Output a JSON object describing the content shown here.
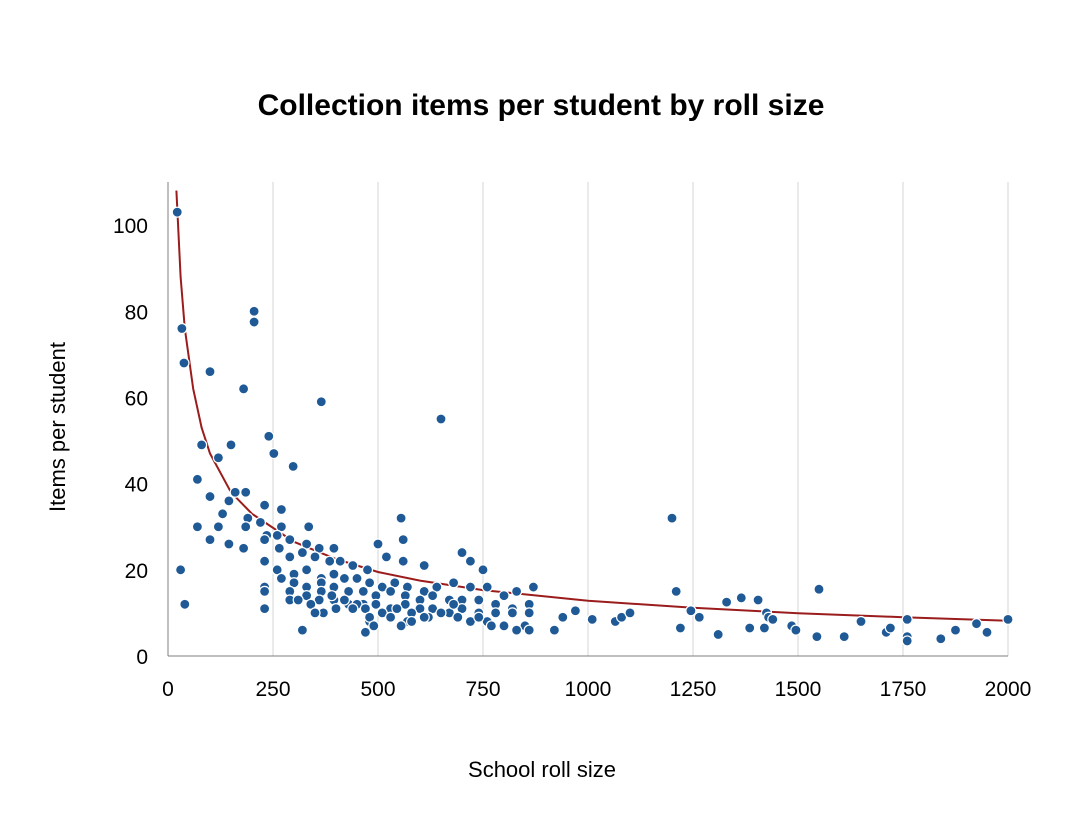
{
  "chart_data": {
    "type": "scatter",
    "title": "Collection items per student by roll size",
    "xlabel": "School roll size",
    "ylabel": "Items per student",
    "xlim": [
      0,
      2000
    ],
    "ylim": [
      0,
      110
    ],
    "xticks": [
      0,
      250,
      500,
      750,
      1000,
      1250,
      1500,
      1750,
      2000
    ],
    "yticks": [
      0,
      20,
      40,
      60,
      80,
      100
    ],
    "grid": "vertical",
    "legend": "none",
    "point_color": "#1f5a96",
    "trend_color": "#9b1c1c",
    "trendline": {
      "type": "power",
      "points": [
        [
          20,
          108
        ],
        [
          30,
          88
        ],
        [
          40,
          76
        ],
        [
          60,
          62
        ],
        [
          80,
          53
        ],
        [
          100,
          47
        ],
        [
          150,
          38
        ],
        [
          200,
          33
        ],
        [
          300,
          26.5
        ],
        [
          400,
          22.5
        ],
        [
          500,
          19.5
        ],
        [
          600,
          17.5
        ],
        [
          750,
          15.3
        ],
        [
          1000,
          12.8
        ],
        [
          1250,
          11.2
        ],
        [
          1500,
          9.9
        ],
        [
          1750,
          9.0
        ],
        [
          2000,
          8.2
        ]
      ]
    },
    "points": [
      [
        22,
        103
      ],
      [
        33,
        76
      ],
      [
        38,
        68
      ],
      [
        30,
        20
      ],
      [
        40,
        12
      ],
      [
        100,
        66
      ],
      [
        205,
        80
      ],
      [
        205,
        77.5
      ],
      [
        180,
        62
      ],
      [
        240,
        51
      ],
      [
        252,
        47
      ],
      [
        150,
        49
      ],
      [
        80,
        49
      ],
      [
        120,
        46
      ],
      [
        298,
        44
      ],
      [
        365,
        59
      ],
      [
        650,
        55
      ],
      [
        1200,
        32
      ],
      [
        1550,
        15.5
      ],
      [
        70,
        41
      ],
      [
        160,
        38
      ],
      [
        185,
        38
      ],
      [
        100,
        37
      ],
      [
        145,
        36
      ],
      [
        230,
        35
      ],
      [
        270,
        34
      ],
      [
        190,
        32
      ],
      [
        220,
        31
      ],
      [
        270,
        30
      ],
      [
        335,
        30
      ],
      [
        70,
        30
      ],
      [
        120,
        30
      ],
      [
        185,
        30
      ],
      [
        130,
        33
      ],
      [
        235,
        28
      ],
      [
        260,
        28
      ],
      [
        100,
        27
      ],
      [
        145,
        26
      ],
      [
        230,
        27
      ],
      [
        290,
        27
      ],
      [
        330,
        26
      ],
      [
        360,
        25
      ],
      [
        395,
        25
      ],
      [
        500,
        26
      ],
      [
        560,
        27
      ],
      [
        555,
        32
      ],
      [
        180,
        25
      ],
      [
        265,
        25
      ],
      [
        290,
        23
      ],
      [
        320,
        24
      ],
      [
        350,
        23
      ],
      [
        385,
        22
      ],
      [
        410,
        22
      ],
      [
        440,
        21
      ],
      [
        475,
        20
      ],
      [
        520,
        23
      ],
      [
        560,
        22
      ],
      [
        610,
        21
      ],
      [
        700,
        24
      ],
      [
        720,
        22
      ],
      [
        750,
        20
      ],
      [
        230,
        22
      ],
      [
        260,
        20
      ],
      [
        300,
        19
      ],
      [
        330,
        20
      ],
      [
        365,
        18
      ],
      [
        395,
        19
      ],
      [
        420,
        18
      ],
      [
        450,
        18
      ],
      [
        480,
        17
      ],
      [
        510,
        16
      ],
      [
        540,
        17
      ],
      [
        570,
        16
      ],
      [
        610,
        15
      ],
      [
        640,
        16
      ],
      [
        680,
        17
      ],
      [
        720,
        16
      ],
      [
        760,
        16
      ],
      [
        800,
        14
      ],
      [
        830,
        15
      ],
      [
        870,
        16
      ],
      [
        270,
        18
      ],
      [
        300,
        17
      ],
      [
        330,
        16
      ],
      [
        365,
        17
      ],
      [
        395,
        16
      ],
      [
        430,
        15
      ],
      [
        465,
        15
      ],
      [
        495,
        14
      ],
      [
        530,
        15
      ],
      [
        565,
        14
      ],
      [
        600,
        13
      ],
      [
        630,
        14
      ],
      [
        670,
        13
      ],
      [
        700,
        13
      ],
      [
        740,
        13
      ],
      [
        780,
        12
      ],
      [
        820,
        11
      ],
      [
        860,
        12
      ],
      [
        230,
        16
      ],
      [
        290,
        15
      ],
      [
        330,
        14
      ],
      [
        365,
        15
      ],
      [
        395,
        13
      ],
      [
        430,
        12
      ],
      [
        465,
        12
      ],
      [
        495,
        12
      ],
      [
        530,
        11
      ],
      [
        565,
        12
      ],
      [
        600,
        11
      ],
      [
        630,
        11
      ],
      [
        670,
        10
      ],
      [
        700,
        11
      ],
      [
        740,
        10
      ],
      [
        780,
        10
      ],
      [
        820,
        10
      ],
      [
        860,
        10
      ],
      [
        230,
        15
      ],
      [
        290,
        13
      ],
      [
        330,
        14
      ],
      [
        360,
        13
      ],
      [
        390,
        14
      ],
      [
        420,
        13
      ],
      [
        450,
        12
      ],
      [
        470,
        11
      ],
      [
        510,
        10
      ],
      [
        545,
        11
      ],
      [
        580,
        10
      ],
      [
        620,
        9
      ],
      [
        650,
        10
      ],
      [
        690,
        9
      ],
      [
        720,
        8
      ],
      [
        760,
        8
      ],
      [
        800,
        7
      ],
      [
        850,
        7
      ],
      [
        230,
        11
      ],
      [
        310,
        13
      ],
      [
        340,
        12
      ],
      [
        370,
        10
      ],
      [
        400,
        11
      ],
      [
        440,
        11
      ],
      [
        480,
        8
      ],
      [
        530,
        9
      ],
      [
        570,
        8
      ],
      [
        610,
        9
      ],
      [
        680,
        12
      ],
      [
        740,
        9
      ],
      [
        770,
        7
      ],
      [
        830,
        6
      ],
      [
        860,
        6
      ],
      [
        920,
        6
      ],
      [
        940,
        9
      ],
      [
        320,
        6
      ],
      [
        480,
        9
      ],
      [
        490,
        7
      ],
      [
        470,
        5.5
      ],
      [
        555,
        7
      ],
      [
        580,
        8
      ],
      [
        350,
        10
      ],
      [
        970,
        10.5
      ],
      [
        1010,
        8.5
      ],
      [
        1065,
        8
      ],
      [
        1080,
        9
      ],
      [
        1100,
        10
      ],
      [
        1210,
        15
      ],
      [
        1220,
        6.5
      ],
      [
        1245,
        10.5
      ],
      [
        1265,
        9
      ],
      [
        1310,
        5
      ],
      [
        1330,
        12.5
      ],
      [
        1365,
        13.5
      ],
      [
        1385,
        6.5
      ],
      [
        1405,
        13
      ],
      [
        1425,
        10
      ],
      [
        1420,
        6.5
      ],
      [
        1430,
        9
      ],
      [
        1440,
        8.5
      ],
      [
        1485,
        7
      ],
      [
        1495,
        6
      ],
      [
        1545,
        4.5
      ],
      [
        1610,
        4.5
      ],
      [
        1650,
        8
      ],
      [
        1710,
        5.5
      ],
      [
        1720,
        6.5
      ],
      [
        1760,
        8.5
      ],
      [
        1760,
        4.5
      ],
      [
        1760,
        3.5
      ],
      [
        1840,
        4
      ],
      [
        1875,
        6
      ],
      [
        1925,
        7.5
      ],
      [
        1950,
        5.5
      ],
      [
        2000,
        8.5
      ]
    ]
  }
}
